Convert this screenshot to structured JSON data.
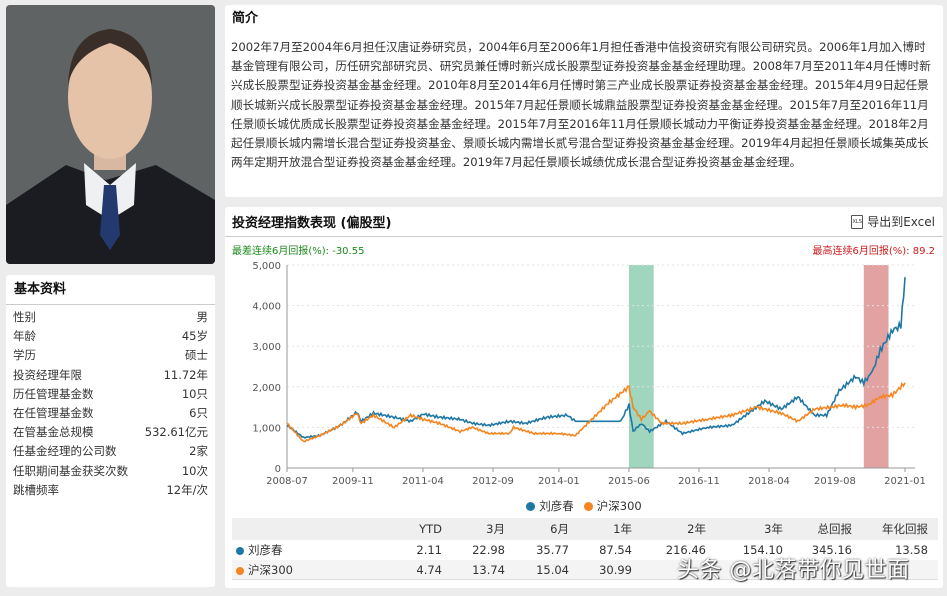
{
  "profile": {
    "photo_alt": "基金经理照片"
  },
  "basic": {
    "title": "基本资料",
    "rows": [
      {
        "label": "性别",
        "value": "男"
      },
      {
        "label": "年龄",
        "value": "45岁"
      },
      {
        "label": "学历",
        "value": "硕士"
      },
      {
        "label": "投资经理年限",
        "value": "11.72年"
      },
      {
        "label": "历任管理基金数",
        "value": "10只"
      },
      {
        "label": "在任管理基金数",
        "value": "6只"
      },
      {
        "label": "在管基金总规模",
        "value": "532.61亿元"
      },
      {
        "label": "任基金经理的公司数",
        "value": "2家"
      },
      {
        "label": "任职期间基金获奖次数",
        "value": "10次"
      },
      {
        "label": "跳槽频率",
        "value": "12年/次"
      }
    ]
  },
  "intro": {
    "title": "简介",
    "text": "2002年7月至2004年6月担任汉唐证券研究员，2004年6月至2006年1月担任香港中信投资研究有限公司研究员。2006年1月加入博时基金管理有限公司，历任研究部研究员、研究员兼任博时新兴成长股票型证券投资基金基金经理助理。2008年7月至2011年4月任博时新兴成长股票型证券投资基金基金经理。2010年8月至2014年6月任博时第三产业成长股票证券投资基金基金经理。2015年4月9日起任景顺长城新兴成长股票型证券投资基金基金经理。2015年7月起任景顺长城鼎益股票型证券投资基金基金经理。2015年7月至2016年11月任景顺长城优质成长股票型证券投资基金基金经理。2015年7月至2016年11月任景顺长城动力平衡证券投资基金基金经理。2018年2月起任景顺长城内需增长混合型证券投资基金、景顺长城内需增长贰号混合型证券投资基金基金经理。2019年4月起担任景顺长城集英成长两年定期开放混合型证券投资基金基金经理。2019年7月起任景顺长城绩优成长混合型证券投资基金基金经理。"
  },
  "chart_panel": {
    "title": "投资经理指数表现 (偏股型)",
    "export_label": "导出到Excel",
    "export_icon": "xls-file-icon",
    "worst": "最差连续6月回报(%): -30.55",
    "best": "最高连续6月回报(%): 89.2"
  },
  "chart_data": {
    "type": "line",
    "yticks": [
      "0",
      "1,000",
      "2,000",
      "3,000",
      "4,000",
      "5,000"
    ],
    "ylim": [
      0,
      5000
    ],
    "xticks": [
      "2008-07",
      "2009-11",
      "2011-04",
      "2012-09",
      "2014-01",
      "2015-06",
      "2016-11",
      "2018-04",
      "2019-08",
      "2021-01"
    ],
    "xlim": [
      "2008-07",
      "2021-01"
    ],
    "grid": "horizontal dashed",
    "legend_position": "bottom",
    "highlight_worst": {
      "from": "2015-06",
      "to": "2015-12",
      "color": "#9fd6bd"
    },
    "highlight_best": {
      "from": "2020-03",
      "to": "2020-09",
      "color": "#e3a2a2"
    },
    "series": [
      {
        "name": "刘彦春",
        "color": "#1f77a4",
        "points": [
          [
            "2008-07",
            1050
          ],
          [
            "2008-11",
            750
          ],
          [
            "2009-03",
            800
          ],
          [
            "2009-08",
            1050
          ],
          [
            "2009-12",
            1380
          ],
          [
            "2010-01",
            1150
          ],
          [
            "2010-04",
            1350
          ],
          [
            "2010-09",
            1250
          ],
          [
            "2011-01",
            1150
          ],
          [
            "2011-04",
            1330
          ],
          [
            "2011-08",
            1250
          ],
          [
            "2012-01",
            1200
          ],
          [
            "2012-04",
            1100
          ],
          [
            "2012-08",
            1050
          ],
          [
            "2013-01",
            1150
          ],
          [
            "2013-05",
            1100
          ],
          [
            "2013-10",
            1250
          ],
          [
            "2014-03",
            1300
          ],
          [
            "2014-05",
            1150
          ],
          [
            "2015-04",
            1150
          ],
          [
            "2015-06",
            1550
          ],
          [
            "2015-07",
            900
          ],
          [
            "2015-09",
            1100
          ],
          [
            "2015-11",
            900
          ],
          [
            "2016-03",
            1150
          ],
          [
            "2016-07",
            850
          ],
          [
            "2017-01",
            1000
          ],
          [
            "2017-07",
            1050
          ],
          [
            "2017-11",
            1350
          ],
          [
            "2018-03",
            1650
          ],
          [
            "2018-07",
            1450
          ],
          [
            "2018-11",
            1750
          ],
          [
            "2019-03",
            1300
          ],
          [
            "2019-06",
            1300
          ],
          [
            "2019-09",
            1900
          ],
          [
            "2020-01",
            2250
          ],
          [
            "2020-03",
            2100
          ],
          [
            "2020-05",
            2350
          ],
          [
            "2020-07",
            2900
          ],
          [
            "2020-10",
            3400
          ],
          [
            "2020-12",
            3500
          ],
          [
            "2021-01",
            4700
          ]
        ]
      },
      {
        "name": "沪深300",
        "color": "#f5861f",
        "points": [
          [
            "2008-07",
            1100
          ],
          [
            "2008-11",
            650
          ],
          [
            "2009-03",
            800
          ],
          [
            "2009-08",
            1050
          ],
          [
            "2009-12",
            1350
          ],
          [
            "2010-01",
            1100
          ],
          [
            "2010-04",
            1300
          ],
          [
            "2010-09",
            1000
          ],
          [
            "2011-01",
            1300
          ],
          [
            "2011-04",
            1200
          ],
          [
            "2011-08",
            1100
          ],
          [
            "2012-01",
            900
          ],
          [
            "2012-04",
            1000
          ],
          [
            "2012-08",
            850
          ],
          [
            "2013-01",
            850
          ],
          [
            "2013-02",
            1000
          ],
          [
            "2013-07",
            850
          ],
          [
            "2014-01",
            850
          ],
          [
            "2014-05",
            800
          ],
          [
            "2015-01",
            1600
          ],
          [
            "2015-06",
            2000
          ],
          [
            "2015-07",
            1500
          ],
          [
            "2015-09",
            1200
          ],
          [
            "2015-11",
            1400
          ],
          [
            "2016-02",
            1100
          ],
          [
            "2016-07",
            1100
          ],
          [
            "2017-01",
            1200
          ],
          [
            "2017-07",
            1300
          ],
          [
            "2018-01",
            1500
          ],
          [
            "2018-07",
            1350
          ],
          [
            "2018-11",
            1150
          ],
          [
            "2019-03",
            1450
          ],
          [
            "2019-07",
            1500
          ],
          [
            "2019-10",
            1550
          ],
          [
            "2020-01",
            1500
          ],
          [
            "2020-04",
            1550
          ],
          [
            "2020-07",
            1750
          ],
          [
            "2020-10",
            1800
          ],
          [
            "2021-01",
            2100
          ]
        ]
      }
    ]
  },
  "returns_table": {
    "headers": [
      "",
      "YTD",
      "3月",
      "6月",
      "1年",
      "2年",
      "3年",
      "总回报",
      "年化回报"
    ],
    "rows": [
      {
        "name": "刘彦春",
        "color": "#1f77a4",
        "values": [
          "2.11",
          "22.98",
          "35.77",
          "87.54",
          "216.46",
          "154.10",
          "345.16",
          "13.58"
        ]
      },
      {
        "name": "沪深300",
        "color": "#f5861f",
        "values": [
          "4.74",
          "13.74",
          "15.04",
          "30.99",
          "",
          "",
          "",
          ""
        ]
      }
    ]
  },
  "watermark": "头条 @北落带你见世面"
}
